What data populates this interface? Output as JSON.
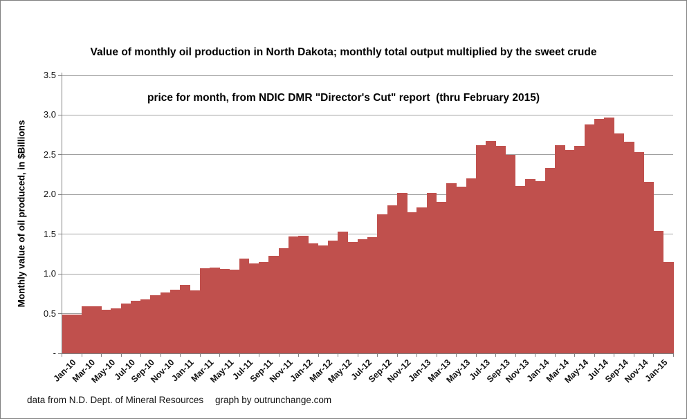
{
  "title": {
    "line1": "Value of monthly oil production in North Dakota; monthly total output multiplied by the sweet crude",
    "line2": "price for month, from NDIC DMR \"Director's Cut\" report  (thru February 2015)"
  },
  "y_axis": {
    "title": "Monthly value of oil produced, in $Billions",
    "tick_labels": [
      "3.5",
      "3.0",
      "2.5",
      "2.0",
      "1.5",
      "1.0",
      "0.5",
      "-"
    ],
    "tick_values": [
      3.5,
      3.0,
      2.5,
      2.0,
      1.5,
      1.0,
      0.5,
      0
    ]
  },
  "x_axis": {
    "tick_labels": [
      "Jan-10",
      "Mar-10",
      "May-10",
      "Jul-10",
      "Sep-10",
      "Nov-10",
      "Jan-11",
      "Mar-11",
      "May-11",
      "Jul-11",
      "Sep-11",
      "Nov-11",
      "Jan-12",
      "Mar-12",
      "May-12",
      "Jul-12",
      "Sep-12",
      "Nov-12",
      "Jan-13",
      "Mar-13",
      "May-13",
      "Jul-13",
      "Sep-13",
      "Nov-13",
      "Jan-14",
      "Mar-14",
      "May-14",
      "Jul-14",
      "Sep-14",
      "Nov-14",
      "Jan-15"
    ]
  },
  "footer": {
    "left": "data from N.D. Dept. of Mineral Resources",
    "right": "graph by outrunchange.com"
  },
  "colors": {
    "bar": "#c0504d",
    "gridline": "#a0a0a0",
    "axis": "#808080",
    "text": "#111111"
  },
  "chart_data": {
    "type": "bar",
    "title": "Value of monthly oil production in North Dakota; monthly total output multiplied by the sweet crude price for month, from NDIC DMR \"Director's Cut\" report (thru February 2015)",
    "xlabel": "",
    "ylabel": "Monthly value of oil produced, in $Billions",
    "ylim": [
      0,
      3.5
    ],
    "grid": true,
    "legend": false,
    "categories": [
      "Jan-10",
      "Feb-10",
      "Mar-10",
      "Apr-10",
      "May-10",
      "Jun-10",
      "Jul-10",
      "Aug-10",
      "Sep-10",
      "Oct-10",
      "Nov-10",
      "Dec-10",
      "Jan-11",
      "Feb-11",
      "Mar-11",
      "Apr-11",
      "May-11",
      "Jun-11",
      "Jul-11",
      "Aug-11",
      "Sep-11",
      "Oct-11",
      "Nov-11",
      "Dec-11",
      "Jan-12",
      "Feb-12",
      "Mar-12",
      "Apr-12",
      "May-12",
      "Jun-12",
      "Jul-12",
      "Aug-12",
      "Sep-12",
      "Oct-12",
      "Nov-12",
      "Dec-12",
      "Jan-13",
      "Feb-13",
      "Mar-13",
      "Apr-13",
      "May-13",
      "Jun-13",
      "Jul-13",
      "Aug-13",
      "Sep-13",
      "Oct-13",
      "Nov-13",
      "Dec-13",
      "Jan-14",
      "Feb-14",
      "Mar-14",
      "Apr-14",
      "May-14",
      "Jun-14",
      "Jul-14",
      "Aug-14",
      "Sep-14",
      "Oct-14",
      "Nov-14",
      "Dec-14",
      "Jan-15",
      "Feb-15"
    ],
    "values": [
      0.49,
      0.49,
      0.59,
      0.59,
      0.55,
      0.57,
      0.63,
      0.66,
      0.68,
      0.73,
      0.77,
      0.8,
      0.86,
      0.79,
      1.07,
      1.08,
      1.06,
      1.05,
      1.19,
      1.13,
      1.15,
      1.23,
      1.32,
      1.47,
      1.48,
      1.38,
      1.36,
      1.42,
      1.53,
      1.4,
      1.44,
      1.46,
      1.75,
      1.86,
      2.02,
      1.78,
      1.84,
      2.02,
      1.91,
      2.14,
      2.1,
      2.2,
      2.62,
      2.67,
      2.61,
      2.5,
      2.11,
      2.19,
      2.17,
      2.33,
      2.62,
      2.56,
      2.61,
      2.88,
      2.95,
      2.97,
      2.77,
      2.66,
      2.53,
      2.16,
      1.54,
      1.15
    ]
  }
}
